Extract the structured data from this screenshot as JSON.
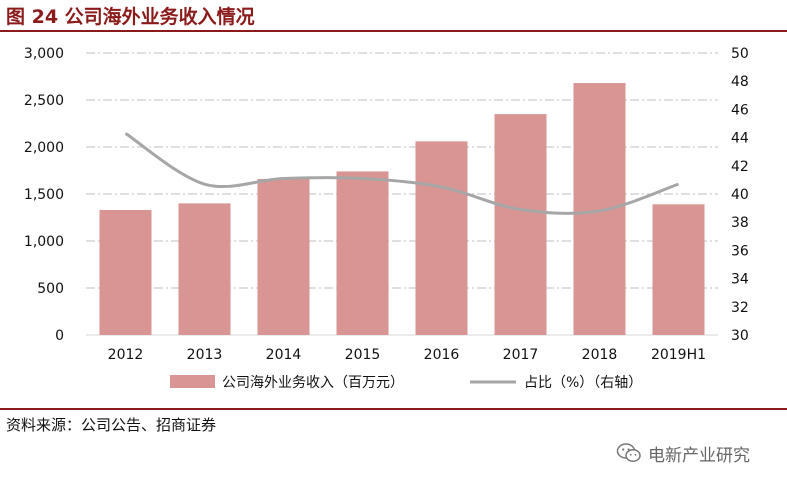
{
  "header": {
    "title": "图 24 公司海外业务收入情况"
  },
  "footer": {
    "source": "资料来源：公司公告、招商证券",
    "watermark": "电新产业研究",
    "watermark_icon": "wechat-icon"
  },
  "colors": {
    "bar": "#d99594",
    "line": "#a6a6a6",
    "accent": "#8b1a1a",
    "grid": "#bfbfbf"
  },
  "chart_data": {
    "type": "bar",
    "categories": [
      "2012",
      "2013",
      "2014",
      "2015",
      "2016",
      "2017",
      "2018",
      "2019H1"
    ],
    "series": [
      {
        "name": "公司海外业务收入（百万元）",
        "type": "bar",
        "axis": "left",
        "values": [
          1330,
          1400,
          1660,
          1740,
          2060,
          2350,
          2680,
          1390
        ]
      },
      {
        "name": "占比（%）（右轴）",
        "type": "line",
        "axis": "right",
        "values": [
          44.3,
          40.7,
          41.1,
          41.1,
          40.5,
          38.9,
          38.8,
          40.7
        ]
      }
    ],
    "y_left": {
      "min": 0,
      "max": 3000,
      "ticks": [
        "0",
        "500",
        "1,000",
        "1,500",
        "2,000",
        "2,500",
        "3,000"
      ]
    },
    "y_right": {
      "min": 30,
      "max": 50,
      "ticks": [
        "30",
        "32",
        "34",
        "36",
        "38",
        "40",
        "42",
        "44",
        "46",
        "48",
        "50"
      ]
    },
    "grid": true,
    "legend": "bottom"
  }
}
